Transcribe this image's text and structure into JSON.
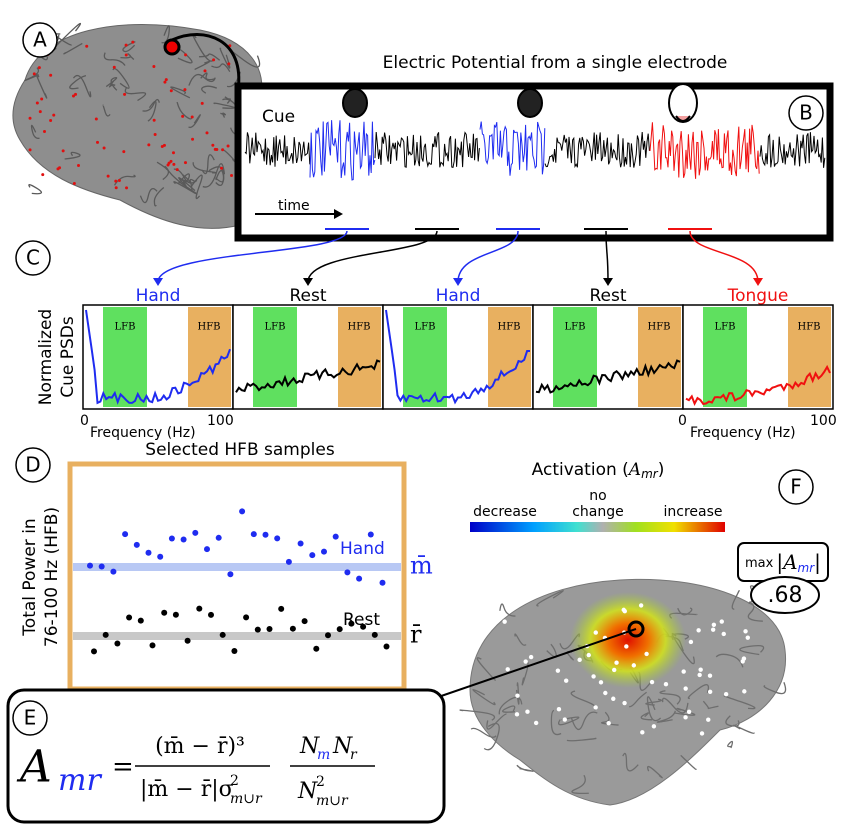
{
  "panels": [
    "A",
    "B",
    "C",
    "D",
    "E",
    "F"
  ],
  "signal": {
    "title": "Electric Potential from a single electrode",
    "cue": "Cue",
    "time": "time"
  },
  "psd": {
    "y_label": [
      "Normalized",
      "Cue PSDs"
    ],
    "conditions": [
      {
        "name": "Hand",
        "color": "#1f2cf0"
      },
      {
        "name": "Rest",
        "color": "#000000"
      },
      {
        "name": "Hand",
        "color": "#1f2cf0"
      },
      {
        "name": "Rest",
        "color": "#000000"
      },
      {
        "name": "Tongue",
        "color": "#f01010"
      }
    ],
    "bands": [
      "LFB",
      "HFB"
    ],
    "x_axis": {
      "start": "0",
      "label": "Frequency (Hz)",
      "end": "100"
    }
  },
  "scatter": {
    "title": "Selected HFB samples",
    "y_label": [
      "Total Power in",
      "76-100 Hz (HFB)"
    ],
    "hand": "Hand",
    "rest": "Rest",
    "m_bar": "m̄",
    "r_bar": "r̄"
  },
  "colorbar": {
    "title": "Activation (",
    "symbol": "A",
    "sub": "mr",
    "close": ")",
    "decrease": "decrease",
    "no": "no",
    "change": "change",
    "increase": "increase"
  },
  "max": {
    "label": "max",
    "bar_open": "|",
    "symbol": "A",
    "sub": "mr",
    "bar_close": "|",
    "value": ".68"
  },
  "formula": {
    "lhs": "A",
    "lhs_sub": "mr",
    "eq": "=",
    "num1": "(m̄ − r̄)³",
    "den1": "|m̄ − r̄|σ",
    "den1_sup": "2",
    "den1_sub": "m∪r",
    "num2": "N",
    "num2_sub1": "m",
    "num2b": "N",
    "num2_sub2": "r",
    "den2": "N",
    "den2_sup": "2",
    "den2_sub": "m∪r"
  }
}
